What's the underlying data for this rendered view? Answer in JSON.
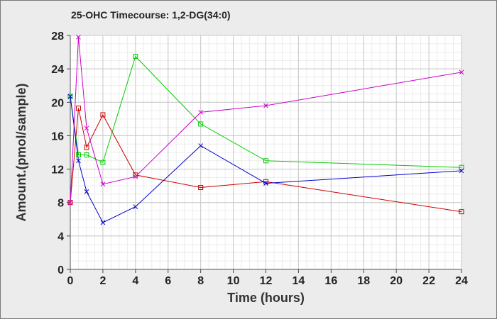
{
  "chart_data": {
    "type": "line",
    "title": "25-OHC Timecourse: 1,2-DG(34:0)",
    "xlabel": "Time (hours)",
    "ylabel": "Amount.(pmol/sample)",
    "xlim": [
      0,
      24
    ],
    "ylim": [
      0,
      28
    ],
    "xticks": [
      0,
      2,
      4,
      6,
      8,
      10,
      12,
      14,
      16,
      18,
      20,
      22,
      24
    ],
    "yticks": [
      0,
      4,
      8,
      12,
      16,
      20,
      24,
      28
    ],
    "grid": true,
    "legend": "none",
    "series": [
      {
        "color": "#cc0000",
        "marker": "square",
        "x": [
          0,
          0.5,
          1,
          2,
          4,
          8,
          12,
          24
        ],
        "y": [
          8.0,
          19.3,
          14.6,
          18.5,
          11.3,
          9.8,
          10.5,
          6.9
        ]
      },
      {
        "color": "#00cc00",
        "marker": "square",
        "x": [
          0,
          0.5,
          1,
          2,
          4,
          8,
          12,
          24
        ],
        "y": [
          20.7,
          13.7,
          13.7,
          12.8,
          25.5,
          17.4,
          13.0,
          12.2
        ]
      },
      {
        "color": "#0000cc",
        "marker": "x",
        "x": [
          0,
          0.5,
          1,
          2,
          4,
          8,
          12,
          24
        ],
        "y": [
          20.7,
          13.0,
          9.3,
          5.6,
          7.5,
          14.8,
          10.3,
          11.8
        ]
      },
      {
        "color": "#cc00cc",
        "marker": "x",
        "x": [
          0,
          0.5,
          1,
          2,
          4,
          8,
          12,
          24
        ],
        "y": [
          8.0,
          27.8,
          16.9,
          10.2,
          11.1,
          18.8,
          19.6,
          23.6
        ]
      }
    ]
  }
}
